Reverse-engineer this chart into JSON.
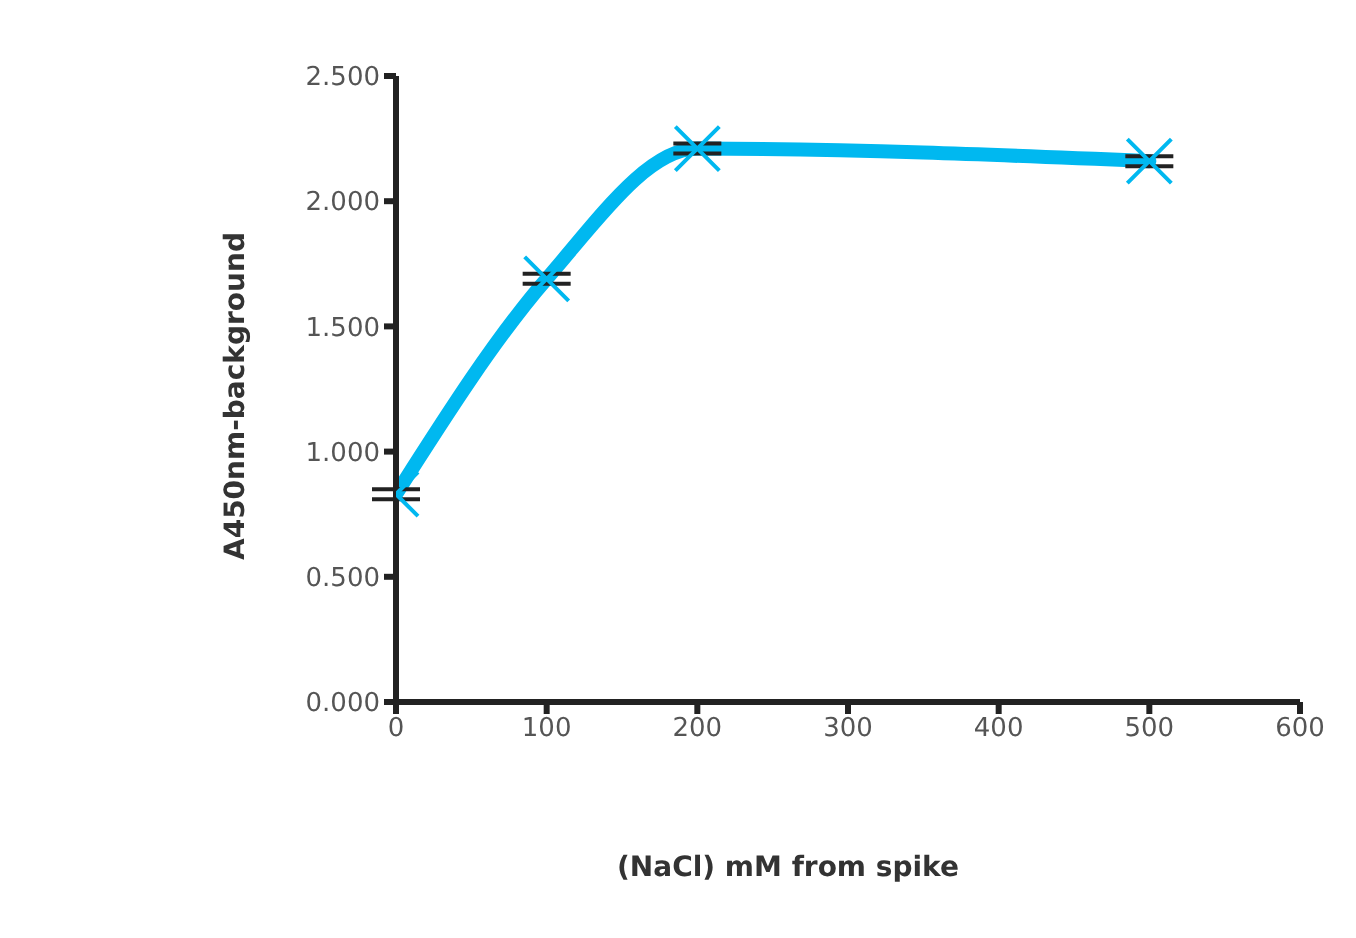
{
  "chart_data": {
    "type": "line",
    "xlabel": "(NaCl) mM from spike",
    "ylabel": "A450nm-background",
    "x": [
      0,
      100,
      200,
      500
    ],
    "series": [
      {
        "color": "#00b8f0",
        "values": [
          0.83,
          1.69,
          2.21,
          2.16
        ],
        "errors": [
          0.02,
          0.02,
          0.02,
          0.02
        ]
      }
    ],
    "xlim": [
      0,
      600
    ],
    "xticks": [
      0,
      100,
      200,
      300,
      400,
      500,
      600
    ],
    "ylim": [
      0,
      2.5
    ],
    "yticks": [
      {
        "value": 0,
        "label": "0.000"
      },
      {
        "value": 0.5,
        "label": "0.500"
      },
      {
        "value": 1,
        "label": "1.000"
      },
      {
        "value": 1.5,
        "label": "1.500"
      },
      {
        "value": 2,
        "label": "2.000"
      },
      {
        "value": 2.5,
        "label": "2.500"
      }
    ],
    "grid": false,
    "marker": "cross",
    "line_style": "solid"
  }
}
